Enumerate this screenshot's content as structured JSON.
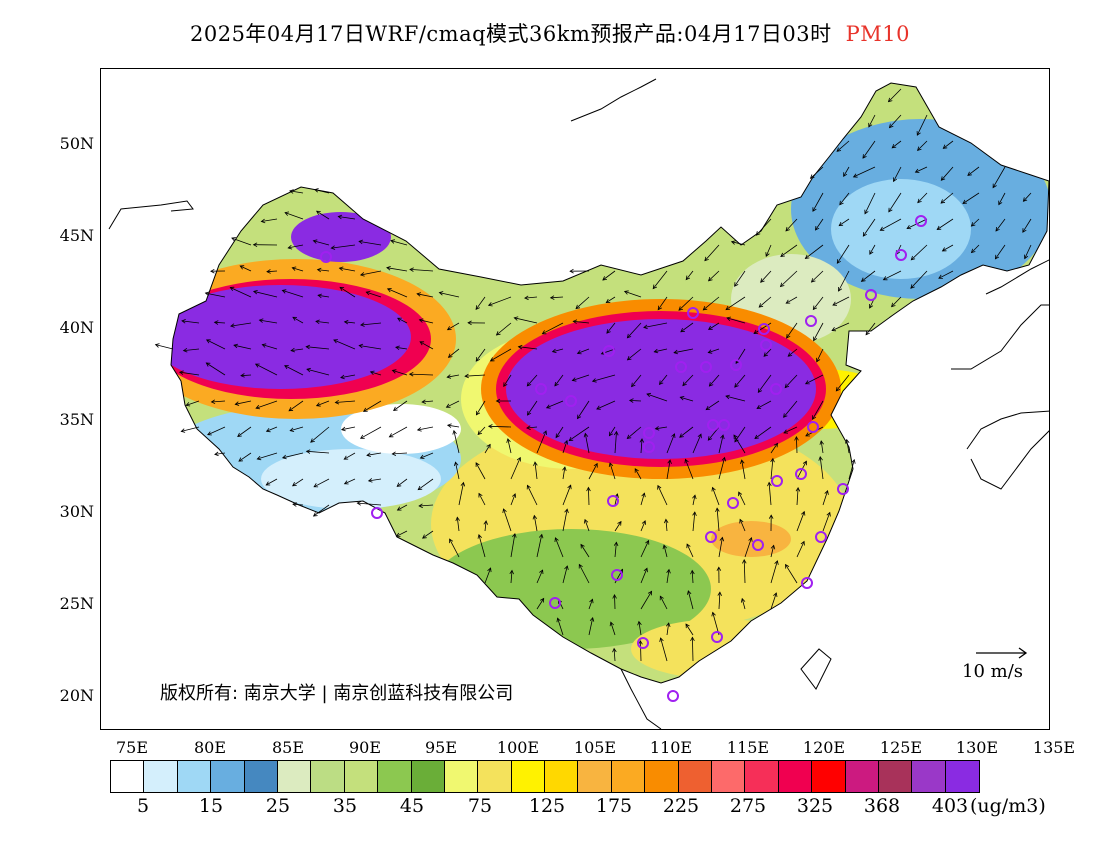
{
  "title": {
    "main": "2025年04月17日WRF/cmaq模式36km预报产品:04月17日03时",
    "variable": "PM10"
  },
  "axes": {
    "lat_labels": [
      "50N",
      "45N",
      "40N",
      "35N",
      "30N",
      "25N",
      "20N"
    ],
    "lon_labels": [
      "75E",
      "80E",
      "85E",
      "90E",
      "95E",
      "100E",
      "105E",
      "110E",
      "115E",
      "120E",
      "125E",
      "130E",
      "135E"
    ]
  },
  "copyright": "版权所有: 南京大学 | 南京创蓝科技有限公司",
  "wind_reference": {
    "label": "10 m/s"
  },
  "colorbar": {
    "colors": [
      "#ffffff",
      "#d4effc",
      "#9fd8f5",
      "#68aee0",
      "#4588c0",
      "#dcebc0",
      "#bcdd84",
      "#c4e07c",
      "#8cc850",
      "#6aae38",
      "#f0f870",
      "#f4e25c",
      "#fff200",
      "#ffd800",
      "#f8b440",
      "#fbaa22",
      "#f98c00",
      "#ee6030",
      "#fd6a6a",
      "#f62f58",
      "#f00050",
      "#ff0000",
      "#cc1a80",
      "#a8325a",
      "#9a38c8",
      "#8a2be2"
    ],
    "tick_labels": [
      "5",
      "15",
      "25",
      "35",
      "45",
      "75",
      "125",
      "175",
      "225",
      "275",
      "325",
      "368",
      "403"
    ],
    "unit": "(ug/m3)"
  }
}
